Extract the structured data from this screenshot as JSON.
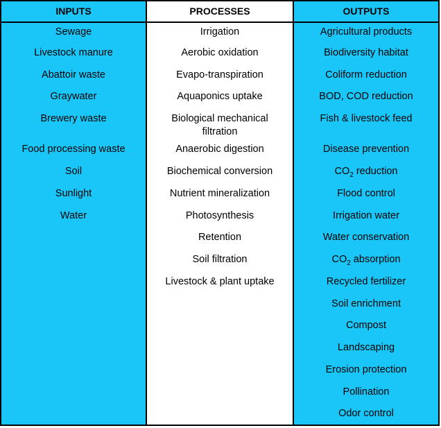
{
  "headers": {
    "inputs": "INPUTS",
    "processes": "PROCESSES",
    "outputs": "OUTPUTS"
  },
  "inputs": [
    "Sewage",
    "Livestock manure",
    "Abattoir waste",
    "Graywater",
    "Brewery waste",
    "Food processing waste",
    "Soil",
    "Sunlight",
    "Water"
  ],
  "processes": [
    "Irrigation",
    "Aerobic oxidation",
    "Evapo-transpiration",
    "Aquaponics uptake",
    "Biological mechanical filtration",
    "Anaerobic digestion",
    "Biochemical conversion",
    "Nutrient mineralization",
    "Photosynthesis",
    "Retention",
    "Soil filtration",
    "Livestock & plant uptake"
  ],
  "outputs": [
    "Agricultural products",
    "Biodiversity habitat",
    "Coliform reduction",
    "BOD, COD reduction",
    "Fish & livestock feed",
    "Disease prevention",
    "CO2 reduction",
    "Flood control",
    "Irrigation water",
    "Water conservation",
    "CO2 absorption",
    "Recycled fertilizer",
    "Soil enrichment",
    "Compost",
    "Landscaping",
    "Erosion protection",
    "Pollination",
    "Odor control"
  ],
  "colors": {
    "column_fill": "#1ac6f8",
    "middle_fill": "#ffffff",
    "border": "#000000"
  }
}
